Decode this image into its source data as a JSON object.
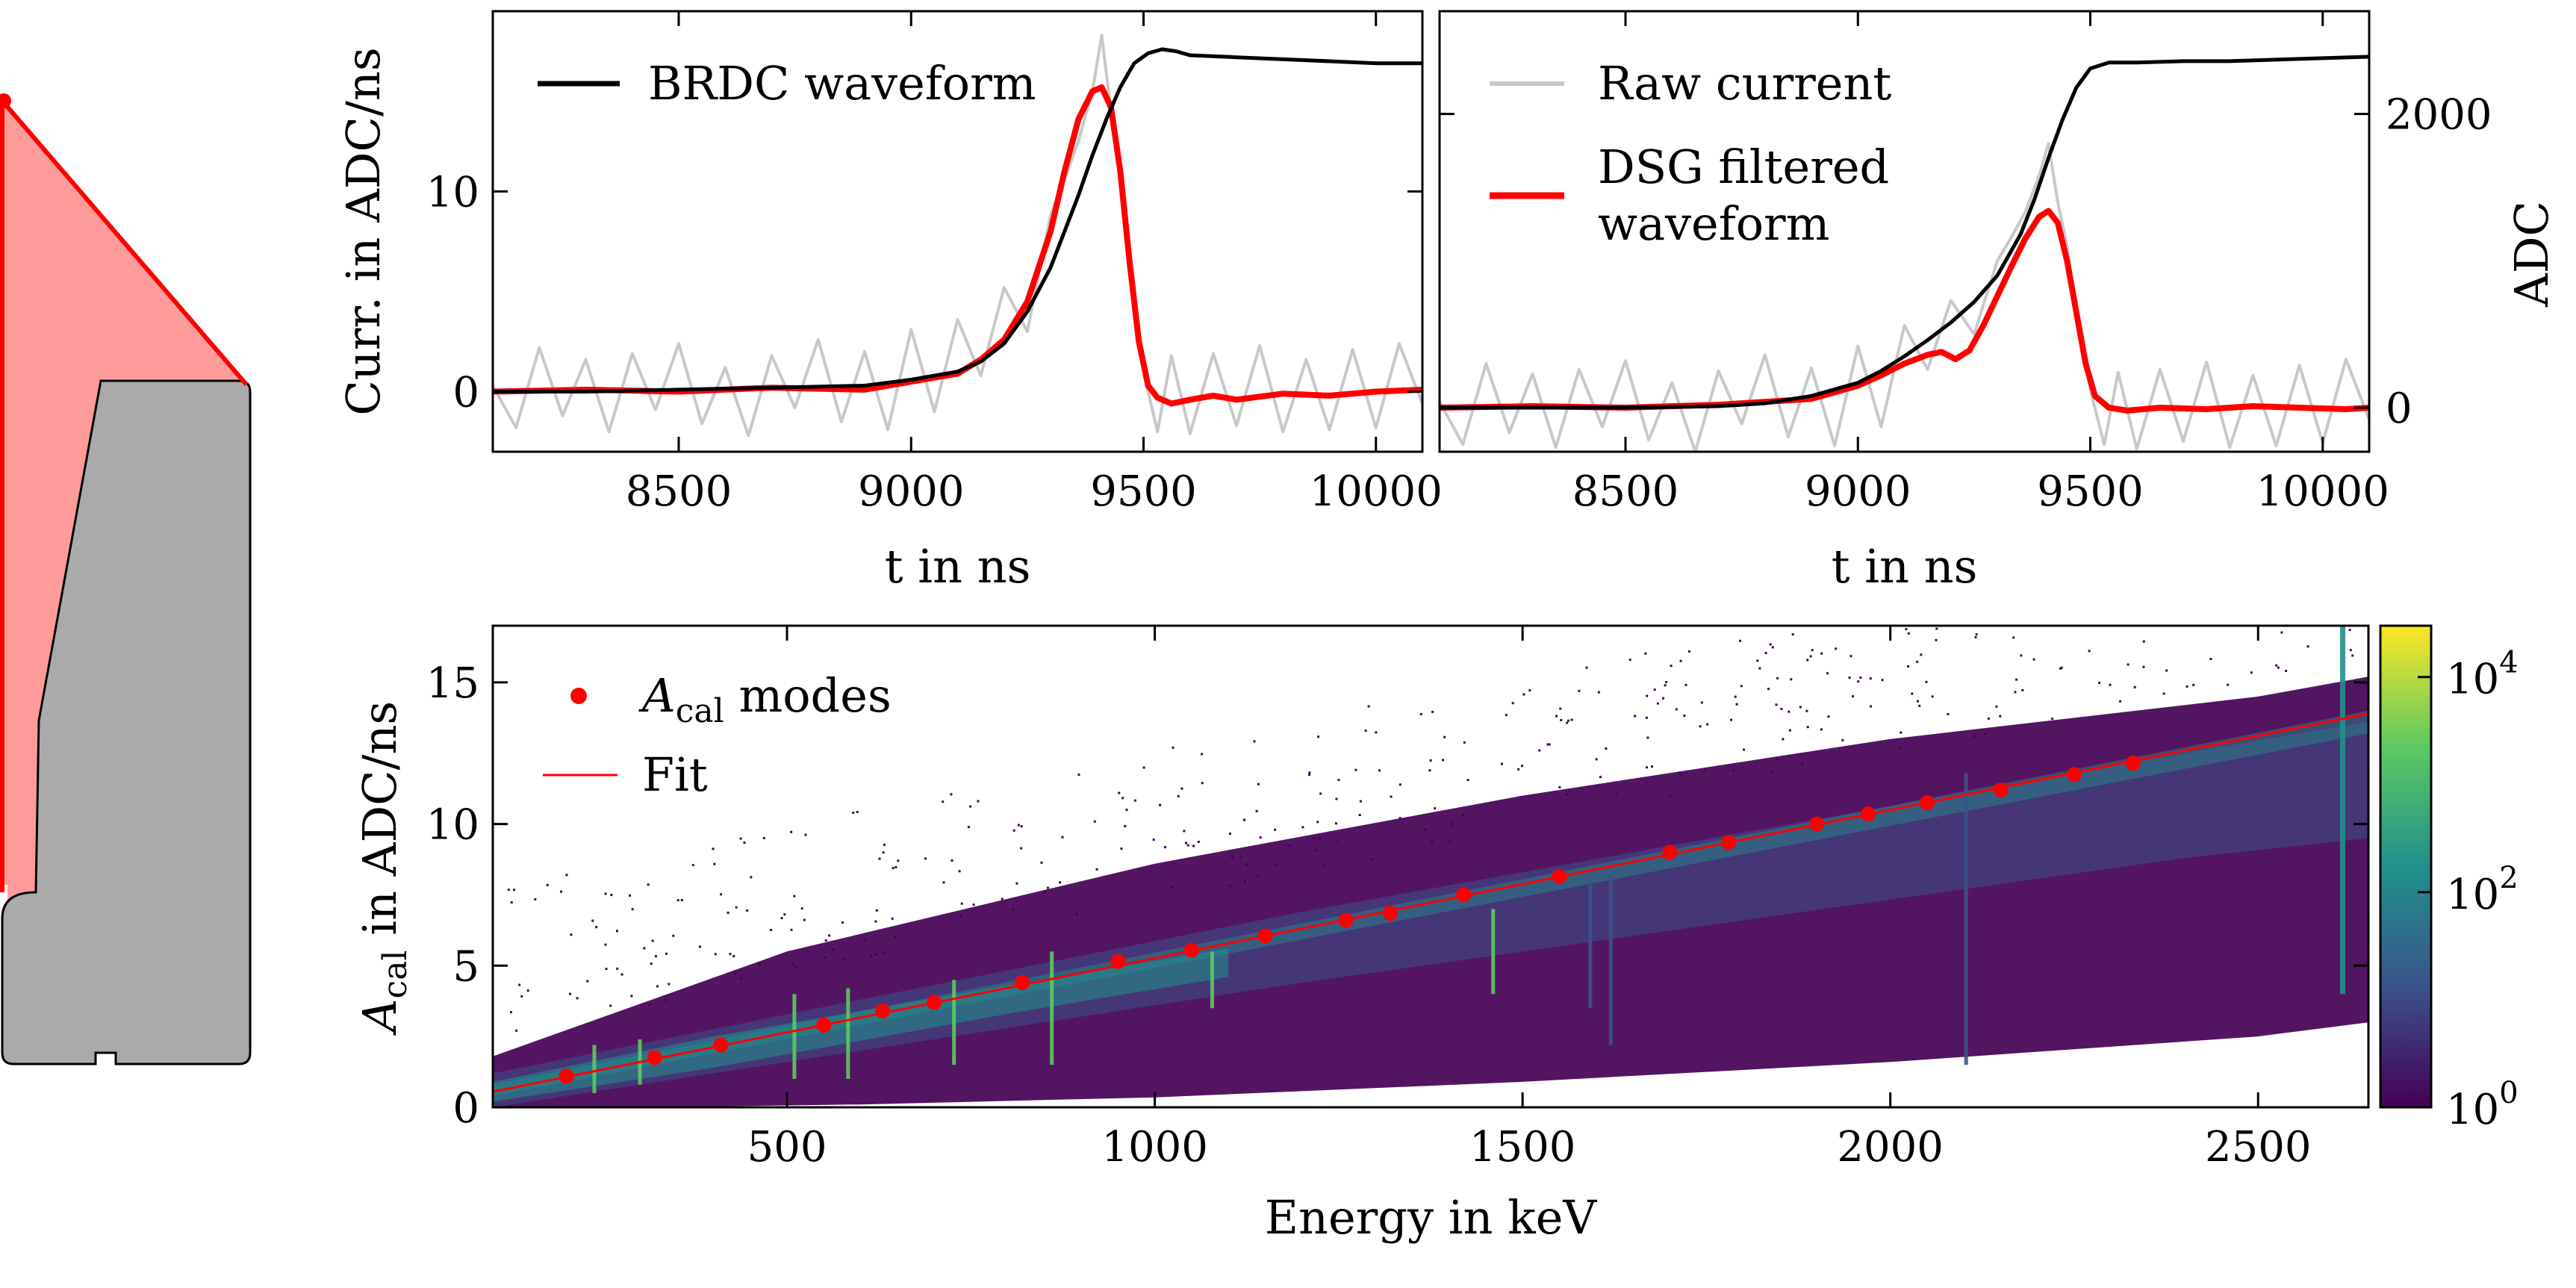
{
  "chart_data": [
    {
      "type": "diagram",
      "part": "detector-cross-section",
      "colors": {
        "fill": "#ff9b9b",
        "edge": "#ff0000",
        "body": "#aaaaaa",
        "outline": "#000000"
      }
    },
    {
      "type": "line",
      "xlabel": "t in ns",
      "ylabel": "Curr. in ADC/ns",
      "xlim": [
        8100,
        10100
      ],
      "ylim": [
        -3,
        19
      ],
      "xticks": [
        8500,
        9000,
        9500,
        10000
      ],
      "yticks": [
        0,
        10
      ],
      "series": [
        {
          "name": "",
          "color": "#c8c8c8",
          "role": "raw current",
          "x": [
            8100,
            8150,
            8200,
            8250,
            8300,
            8350,
            8400,
            8450,
            8500,
            8550,
            8600,
            8650,
            8700,
            8750,
            8800,
            8850,
            8900,
            8950,
            9000,
            9050,
            9100,
            9150,
            9200,
            9250,
            9300,
            9330,
            9360,
            9390,
            9410,
            9430,
            9450,
            9470,
            9500,
            9530,
            9560,
            9600,
            9650,
            9700,
            9750,
            9800,
            9850,
            9900,
            9950,
            10000,
            10050,
            10100
          ],
          "y": [
            0.3,
            -1.8,
            2.2,
            -1.2,
            1.6,
            -2.0,
            1.9,
            -0.9,
            2.4,
            -1.6,
            1.2,
            -2.2,
            1.8,
            -0.8,
            2.6,
            -1.5,
            2.0,
            -1.9,
            3.1,
            -1.0,
            3.6,
            0.8,
            5.2,
            3.0,
            8.8,
            10.6,
            12.5,
            15.0,
            17.8,
            14.0,
            11.2,
            6.0,
            1.0,
            -2.0,
            1.8,
            -2.1,
            1.9,
            -1.7,
            2.3,
            -2.0,
            1.6,
            -1.9,
            2.1,
            -1.8,
            2.4,
            -0.6
          ]
        },
        {
          "name": "",
          "color": "#ff0000",
          "role": "filtered current",
          "x": [
            8100,
            8300,
            8500,
            8700,
            8900,
            9000,
            9100,
            9150,
            9200,
            9250,
            9300,
            9330,
            9360,
            9390,
            9410,
            9430,
            9450,
            9470,
            9490,
            9510,
            9530,
            9560,
            9600,
            9650,
            9700,
            9800,
            9900,
            10000,
            10100
          ],
          "y": [
            0,
            0.1,
            0,
            0.2,
            0.1,
            0.5,
            0.9,
            1.6,
            2.6,
            4.5,
            8.0,
            11.0,
            13.6,
            15.0,
            15.2,
            14.2,
            11.0,
            6.5,
            2.5,
            0.3,
            -0.3,
            -0.6,
            -0.4,
            -0.2,
            -0.4,
            -0.1,
            -0.2,
            0,
            0.1
          ]
        },
        {
          "name": "BRDC waveform",
          "color": "#000000",
          "role": "waveform",
          "x": [
            8100,
            8300,
            8500,
            8700,
            8900,
            9000,
            9100,
            9150,
            9200,
            9250,
            9300,
            9330,
            9360,
            9390,
            9420,
            9450,
            9480,
            9510,
            9540,
            9570,
            9600,
            9700,
            9800,
            9900,
            10000,
            10100
          ],
          "y": [
            0,
            0,
            0.1,
            0.2,
            0.3,
            0.6,
            1.0,
            1.5,
            2.4,
            4.0,
            6.2,
            8.0,
            9.8,
            11.8,
            13.6,
            15.2,
            16.4,
            16.9,
            17.1,
            17.0,
            16.8,
            16.7,
            16.6,
            16.5,
            16.4,
            16.4
          ]
        }
      ]
    },
    {
      "type": "line",
      "xlabel": "t in ns",
      "ylabel": "ADC",
      "xlim": [
        8100,
        10100
      ],
      "ylim": [
        -300,
        2700
      ],
      "xticks": [
        8500,
        9000,
        9500,
        10000
      ],
      "yticks": [
        0,
        2000
      ],
      "series": [
        {
          "name": "Raw current",
          "color": "#c8c8c8",
          "role": "raw current",
          "x": [
            8100,
            8150,
            8200,
            8250,
            8300,
            8350,
            8400,
            8450,
            8500,
            8550,
            8600,
            8650,
            8700,
            8750,
            8800,
            8850,
            8900,
            8950,
            9000,
            9050,
            9100,
            9150,
            9200,
            9250,
            9300,
            9330,
            9360,
            9390,
            9410,
            9430,
            9450,
            9470,
            9500,
            9530,
            9560,
            9600,
            9650,
            9700,
            9750,
            9800,
            9850,
            9900,
            9950,
            10000,
            10050,
            10100
          ],
          "y": [
            40,
            -250,
            300,
            -170,
            230,
            -270,
            260,
            -130,
            320,
            -220,
            170,
            -300,
            250,
            -110,
            360,
            -200,
            270,
            -260,
            420,
            -130,
            560,
            260,
            730,
            500,
            1000,
            1160,
            1330,
            1580,
            1800,
            1400,
            1100,
            600,
            120,
            -250,
            240,
            -280,
            260,
            -230,
            310,
            -270,
            220,
            -260,
            290,
            -240,
            330,
            -80
          ]
        },
        {
          "name": "DSG filtered\nwaveform",
          "color": "#ff0000",
          "role": "filtered current",
          "x": [
            8100,
            8300,
            8500,
            8700,
            8900,
            9000,
            9050,
            9100,
            9150,
            9180,
            9210,
            9240,
            9270,
            9300,
            9330,
            9360,
            9390,
            9410,
            9430,
            9450,
            9470,
            9490,
            9510,
            9540,
            9580,
            9650,
            9750,
            9850,
            9950,
            10050,
            10100
          ],
          "y": [
            0,
            10,
            0,
            20,
            60,
            150,
            220,
            300,
            360,
            380,
            330,
            390,
            560,
            760,
            960,
            1150,
            1300,
            1340,
            1260,
            1000,
            650,
            300,
            80,
            0,
            -20,
            0,
            -10,
            10,
            0,
            -10,
            0
          ]
        },
        {
          "name": "",
          "color": "#000000",
          "role": "waveform",
          "x": [
            8100,
            8300,
            8500,
            8700,
            8800,
            8900,
            9000,
            9050,
            9100,
            9150,
            9200,
            9250,
            9300,
            9350,
            9380,
            9410,
            9440,
            9470,
            9500,
            9540,
            9580,
            9600,
            9700,
            9800,
            9900,
            10000,
            10100
          ],
          "y": [
            0,
            0,
            0,
            10,
            30,
            80,
            170,
            250,
            350,
            460,
            580,
            720,
            900,
            1180,
            1420,
            1700,
            1960,
            2180,
            2310,
            2350,
            2350,
            2350,
            2360,
            2360,
            2370,
            2380,
            2390
          ]
        }
      ]
    },
    {
      "type": "heatmap",
      "xlabel": "Energy in keV",
      "ylabel": "A",
      "ylabel_sub": "cal",
      "ylabel_tail": " in ADC/ns",
      "xlim": [
        100,
        2650
      ],
      "ylim": [
        0,
        17
      ],
      "xticks": [
        500,
        1000,
        1500,
        2000,
        2500
      ],
      "yticks": [
        0,
        5,
        10,
        15
      ],
      "colorbar": {
        "scale": "log",
        "ticks": [
          {
            "value": 1,
            "base": "10",
            "exp": "0"
          },
          {
            "value": 100,
            "base": "10",
            "exp": "2"
          },
          {
            "value": 10000,
            "base": "10",
            "exp": "4"
          }
        ],
        "range": [
          1,
          30000
        ],
        "colormap": [
          "#440154",
          "#3b528b",
          "#21918c",
          "#5ec962",
          "#fde725"
        ]
      },
      "lines": [
        {
          "x": [
            2615,
            2615
          ],
          "y": [
            4.0,
            17.0
          ]
        },
        {
          "x": [
            2103,
            2103
          ],
          "y": [
            1.5,
            11.8
          ]
        },
        {
          "x": [
            1620,
            1620
          ],
          "y": [
            2.2,
            8.2
          ]
        },
        {
          "x": [
            1592,
            1592
          ],
          "y": [
            3.5,
            8.0
          ]
        },
        {
          "x": [
            1460,
            1460
          ],
          "y": [
            4.0,
            7.0
          ]
        },
        {
          "x": [
            1078,
            1078
          ],
          "y": [
            3.5,
            5.5
          ]
        },
        {
          "x": [
            860,
            860
          ],
          "y": [
            1.5,
            5.5
          ]
        },
        {
          "x": [
            727,
            727
          ],
          "y": [
            1.5,
            4.5
          ]
        },
        {
          "x": [
            583,
            583
          ],
          "y": [
            1.0,
            4.2
          ]
        },
        {
          "x": [
            510,
            510
          ],
          "y": [
            1.0,
            4.0
          ]
        },
        {
          "x": [
            300,
            300
          ],
          "y": [
            0.8,
            2.4
          ]
        },
        {
          "x": [
            238,
            238
          ],
          "y": [
            0.5,
            2.2
          ]
        }
      ],
      "legend": [
        {
          "label": "A",
          "sub": "cal",
          "tail": " modes",
          "color": "#ff0000"
        },
        {
          "label": "Fit",
          "color": "#ff0000"
        }
      ],
      "modes": {
        "name": "A_cal modes",
        "x": [
          200,
          320,
          410,
          550,
          630,
          700,
          820,
          950,
          1050,
          1150,
          1260,
          1320,
          1420,
          1550,
          1700,
          1780,
          1900,
          1970,
          2050,
          2150,
          2250,
          2330
        ],
        "y": [
          1.1,
          1.75,
          2.2,
          2.9,
          3.4,
          3.7,
          4.4,
          5.15,
          5.55,
          6.05,
          6.6,
          6.85,
          7.5,
          8.15,
          9.0,
          9.35,
          10.0,
          10.35,
          10.75,
          11.2,
          11.75,
          12.15
        ]
      },
      "fit": {
        "name": "Fit",
        "x": [
          100,
          2650
        ],
        "y": [
          0.55,
          13.9
        ]
      }
    }
  ]
}
